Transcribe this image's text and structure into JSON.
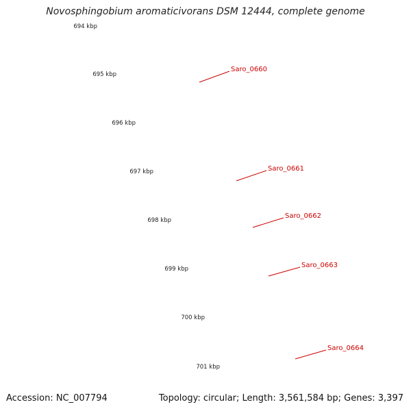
{
  "header": {
    "title": "Novosphingobium aromaticivorans DSM 12444, complete genome"
  },
  "footer": {
    "accession": "Accession: NC_007794",
    "summary": "Topology: circular; Length: 3,561,584 bp; Genes: 3,397"
  },
  "ticks": [
    {
      "label": "694 kbp"
    },
    {
      "label": "695 kbp"
    },
    {
      "label": "696 kbp"
    },
    {
      "label": "697 kbp"
    },
    {
      "label": "698 kbp"
    },
    {
      "label": "699 kbp"
    },
    {
      "label": "700 kbp"
    },
    {
      "label": "701 kbp"
    }
  ],
  "genes": [
    {
      "label": "Saro_0660"
    },
    {
      "label": "Saro_0661"
    },
    {
      "label": "Saro_0662"
    },
    {
      "label": "Saro_0663"
    },
    {
      "label": "Saro_0664"
    }
  ],
  "colors": {
    "gene": "#ff0000",
    "gene_highlight": "#ff8080",
    "backbone": "#808080",
    "tick": "#1a8c1a",
    "label": "#cc0000"
  }
}
